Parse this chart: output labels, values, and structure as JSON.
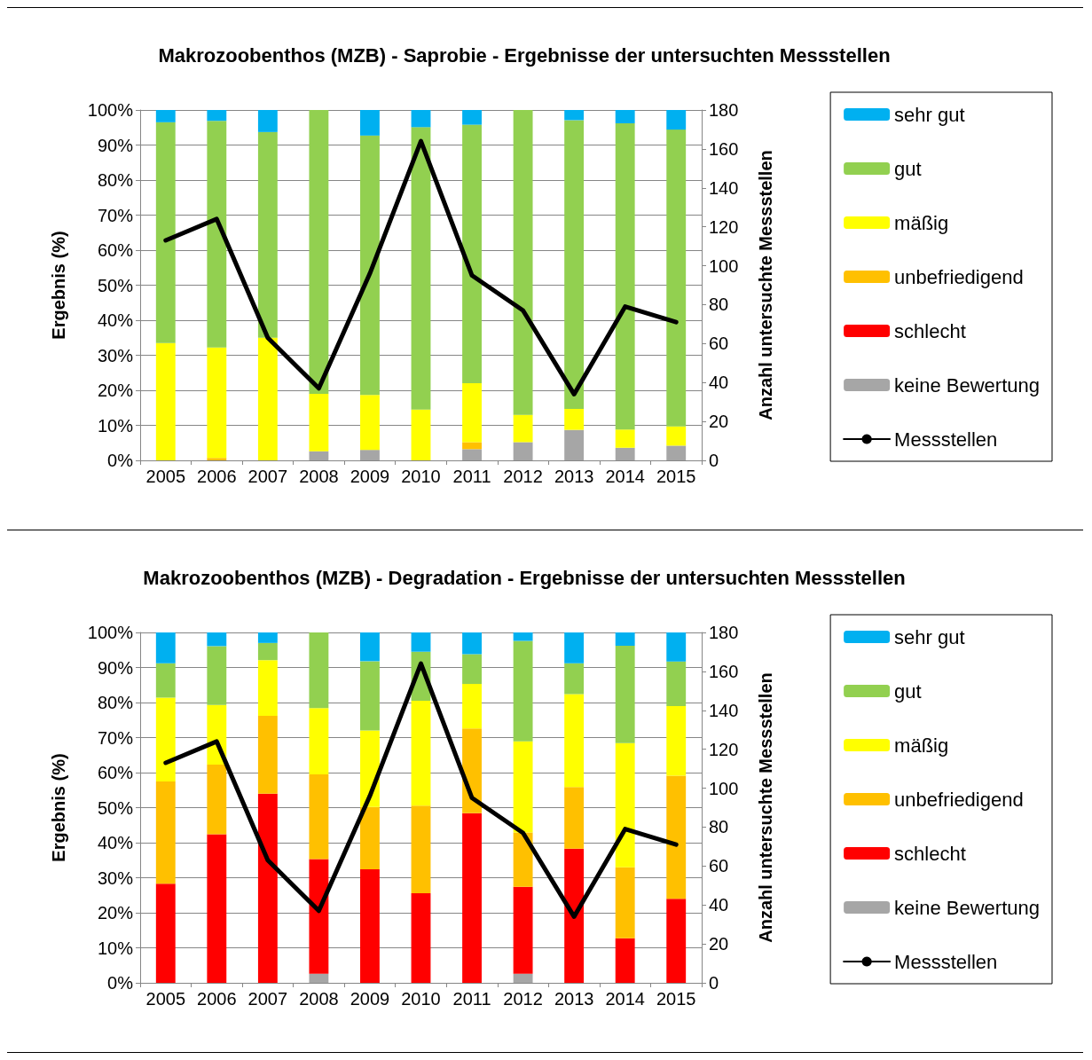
{
  "chart_data": [
    {
      "type": "bar",
      "stacked": true,
      "title": "Makrozoobenthos (MZB) - Saprobie - Ergebnisse der untersuchten Messstellen",
      "ylabel": "Ergebnis (%)",
      "y2label": "Anzahl untersuchte Messstellen",
      "categories": [
        "2005",
        "2006",
        "2007",
        "2008",
        "2009",
        "2010",
        "2011",
        "2012",
        "2013",
        "2014",
        "2015"
      ],
      "ylim": [
        0,
        100
      ],
      "yticks": [
        {
          "value": 0,
          "label": "0%"
        },
        {
          "value": 10,
          "label": "10%"
        },
        {
          "value": 20,
          "label": "20%"
        },
        {
          "value": 30,
          "label": "30%"
        },
        {
          "value": 40,
          "label": "40%"
        },
        {
          "value": 50,
          "label": "50%"
        },
        {
          "value": 60,
          "label": "60%"
        },
        {
          "value": 70,
          "label": "70%"
        },
        {
          "value": 80,
          "label": "80%"
        },
        {
          "value": 90,
          "label": "90%"
        },
        {
          "value": 100,
          "label": "100%"
        }
      ],
      "y2lim": [
        0,
        180
      ],
      "y2ticks": [
        0,
        20,
        40,
        60,
        80,
        100,
        120,
        140,
        160,
        180
      ],
      "grid": "y",
      "legend": "right",
      "marker": "none",
      "series": [
        {
          "name": "keine Bewertung",
          "color": "#a6a6a6",
          "values": [
            0,
            0,
            0,
            2.6,
            3,
            0,
            3.2,
            5.2,
            8.7,
            3.6,
            4.2
          ]
        },
        {
          "name": "schlecht",
          "color": "#ff0000",
          "values": [
            0,
            0,
            0,
            0,
            0,
            0,
            0,
            0,
            0,
            0,
            0
          ]
        },
        {
          "name": "unbefriedigend",
          "color": "#ffc000",
          "values": [
            0,
            0.7,
            0,
            0,
            0,
            0,
            2,
            0,
            0,
            0,
            0
          ]
        },
        {
          "name": "mäßig",
          "color": "#ffff00",
          "values": [
            33.5,
            31.5,
            35,
            16.4,
            15.7,
            14.5,
            16.8,
            7.8,
            6,
            5.2,
            5.5
          ]
        },
        {
          "name": "gut",
          "color": "#92d050",
          "values": [
            63,
            64.7,
            58.7,
            81,
            74,
            80.6,
            73.8,
            87,
            82.4,
            87.4,
            84.7
          ]
        },
        {
          "name": "sehr gut",
          "color": "#00b0f0",
          "values": [
            3.5,
            3.1,
            6.3,
            0,
            7.3,
            4.9,
            4.2,
            0,
            2.9,
            3.8,
            5.6
          ]
        },
        {
          "name": "Messstellen",
          "type": "line",
          "axis": "y2",
          "color": "#000000",
          "values": [
            113,
            124,
            63,
            37,
            96,
            164,
            95,
            77,
            34,
            79,
            71
          ]
        }
      ]
    },
    {
      "type": "bar",
      "stacked": true,
      "title": "Makrozoobenthos (MZB) - Degradation - Ergebnisse der untersuchten Messstellen",
      "ylabel": "Ergebnis (%)",
      "y2label": "Anzahl untersuchte Messstellen",
      "categories": [
        "2005",
        "2006",
        "2007",
        "2008",
        "2009",
        "2010",
        "2011",
        "2012",
        "2013",
        "2014",
        "2015"
      ],
      "ylim": [
        0,
        100
      ],
      "yticks": [
        {
          "value": 0,
          "label": "0%"
        },
        {
          "value": 10,
          "label": "10%"
        },
        {
          "value": 20,
          "label": "20%"
        },
        {
          "value": 30,
          "label": "30%"
        },
        {
          "value": 40,
          "label": "40%"
        },
        {
          "value": 50,
          "label": "50%"
        },
        {
          "value": 60,
          "label": "60%"
        },
        {
          "value": 70,
          "label": "70%"
        },
        {
          "value": 80,
          "label": "80%"
        },
        {
          "value": 90,
          "label": "90%"
        },
        {
          "value": 100,
          "label": "100%"
        }
      ],
      "y2lim": [
        0,
        180
      ],
      "y2ticks": [
        0,
        20,
        40,
        60,
        80,
        100,
        120,
        140,
        160,
        180
      ],
      "grid": "y",
      "legend": "right",
      "marker": "none",
      "series": [
        {
          "name": "keine Bewertung",
          "color": "#a6a6a6",
          "values": [
            0,
            0,
            0,
            2.6,
            0,
            0,
            0,
            2.6,
            0,
            0,
            0
          ]
        },
        {
          "name": "schlecht",
          "color": "#ff0000",
          "values": [
            28.3,
            42.4,
            54,
            32.7,
            32.4,
            25.6,
            48.4,
            24.8,
            38.3,
            12.7,
            24
          ]
        },
        {
          "name": "unbefriedigend",
          "color": "#ffc000",
          "values": [
            29.2,
            19.9,
            22.2,
            24.2,
            17.8,
            25,
            24.2,
            15.5,
            17.6,
            20.3,
            35.1
          ]
        },
        {
          "name": "mäßig",
          "color": "#ffff00",
          "values": [
            23.9,
            17,
            15.9,
            18.9,
            21.8,
            29.9,
            12.7,
            26,
            26.5,
            35.4,
            19.9
          ]
        },
        {
          "name": "gut",
          "color": "#92d050",
          "values": [
            9.8,
            16.8,
            4.9,
            21.6,
            19.8,
            14,
            8.5,
            28.7,
            8.8,
            27.8,
            12.7
          ]
        },
        {
          "name": "sehr gut",
          "color": "#00b0f0",
          "values": [
            8.8,
            3.9,
            3,
            0,
            8.2,
            5.5,
            6.2,
            2.4,
            8.8,
            3.8,
            8.3
          ]
        },
        {
          "name": "Messstellen",
          "type": "line",
          "axis": "y2",
          "color": "#000000",
          "values": [
            113,
            124,
            63,
            37,
            96,
            164,
            95,
            77,
            34,
            79,
            71
          ]
        }
      ]
    }
  ]
}
